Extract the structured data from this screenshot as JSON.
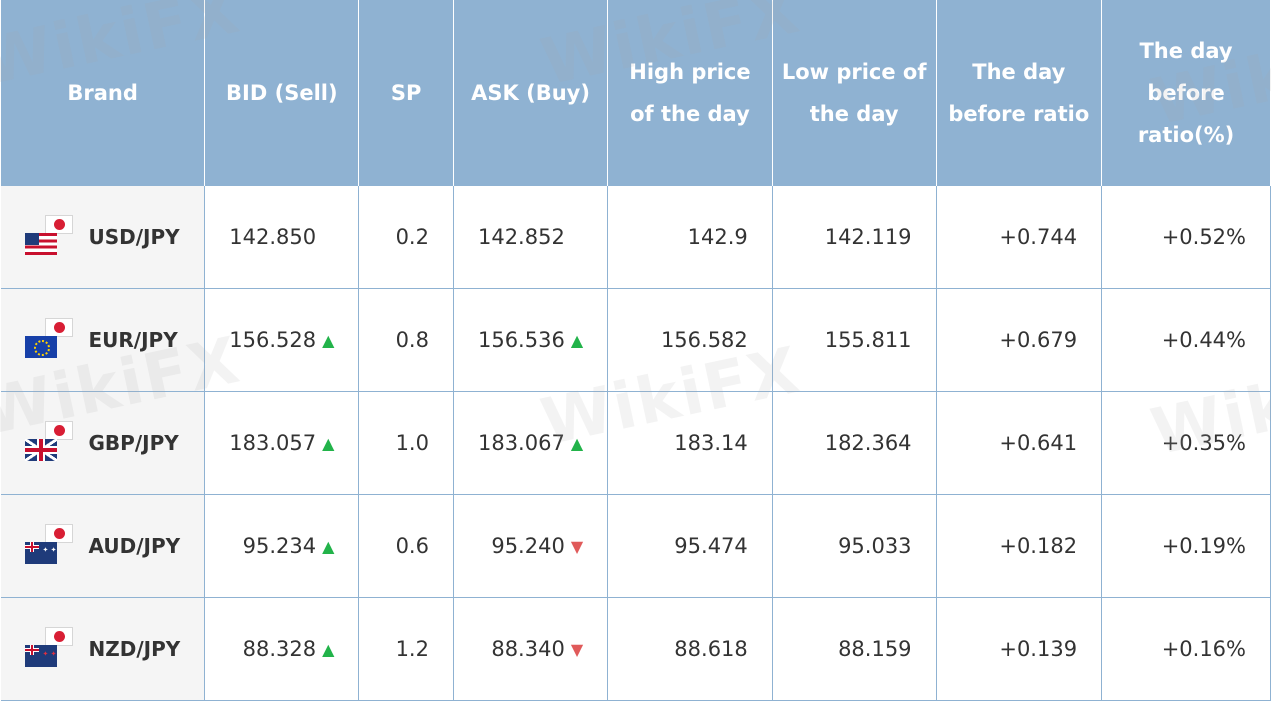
{
  "headers": {
    "brand": "Brand",
    "bid": "BID (Sell)",
    "sp": "SP",
    "ask": "ASK (Buy)",
    "high": "High price of the day",
    "low": "Low price of the day",
    "day_before": "The day before ratio",
    "day_before_pct": "The day before ratio(%)"
  },
  "rows": [
    {
      "pair": "USD/JPY",
      "base_flag": "us-flag-icon",
      "bid": "142.850",
      "bid_trend": "none",
      "sp": "0.2",
      "ask": "142.852",
      "ask_trend": "none",
      "high": "142.9",
      "low": "142.119",
      "ratio": "+0.744",
      "ratio_pct": "+0.52%"
    },
    {
      "pair": "EUR/JPY",
      "base_flag": "eu-flag-icon",
      "bid": "156.528",
      "bid_trend": "up",
      "sp": "0.8",
      "ask": "156.536",
      "ask_trend": "up",
      "high": "156.582",
      "low": "155.811",
      "ratio": "+0.679",
      "ratio_pct": "+0.44%"
    },
    {
      "pair": "GBP/JPY",
      "base_flag": "gb-flag-icon",
      "bid": "183.057",
      "bid_trend": "up",
      "sp": "1.0",
      "ask": "183.067",
      "ask_trend": "up",
      "high": "183.14",
      "low": "182.364",
      "ratio": "+0.641",
      "ratio_pct": "+0.35%"
    },
    {
      "pair": "AUD/JPY",
      "base_flag": "au-flag-icon",
      "bid": "95.234",
      "bid_trend": "up",
      "sp": "0.6",
      "ask": "95.240",
      "ask_trend": "down",
      "high": "95.474",
      "low": "95.033",
      "ratio": "+0.182",
      "ratio_pct": "+0.19%"
    },
    {
      "pair": "NZD/JPY",
      "base_flag": "nz-flag-icon",
      "bid": "88.328",
      "bid_trend": "up",
      "sp": "1.2",
      "ask": "88.340",
      "ask_trend": "down",
      "high": "88.618",
      "low": "88.159",
      "ratio": "+0.139",
      "ratio_pct": "+0.16%"
    }
  ],
  "colors": {
    "header_bg": "#8fb2d2",
    "up": "#22b34a",
    "down": "#e05a5a",
    "brand_bg": "#f5f5f5"
  },
  "watermark": "WikiFX"
}
